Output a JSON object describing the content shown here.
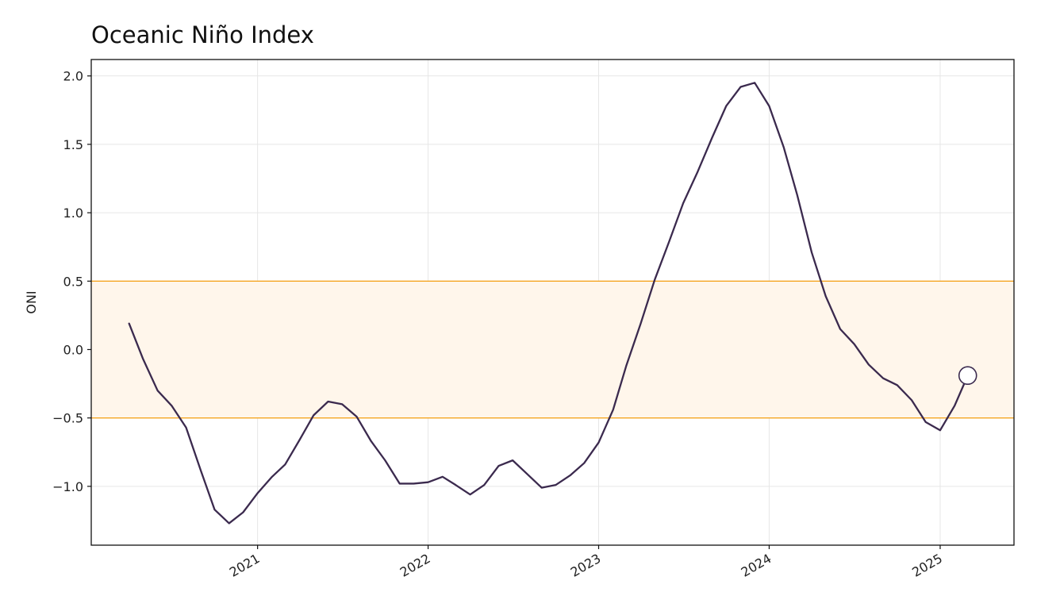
{
  "chart_data": {
    "type": "line",
    "title": "Oceanic Niño Index",
    "xlabel": "",
    "ylabel": "ONI",
    "x_ticks": [
      "2021",
      "2022",
      "2023",
      "2024",
      "2025"
    ],
    "y_ticks": [
      "2.0",
      "1.5",
      "1.0",
      "0.5",
      "0.0",
      "−0.5",
      "−1.0"
    ],
    "y_tick_values": [
      2.0,
      1.5,
      1.0,
      0.5,
      0.0,
      -0.5,
      -1.0
    ],
    "ylim": [
      -1.43,
      2.12
    ],
    "xlim": [
      "2020-01-11",
      "2025-06-08"
    ],
    "grid": true,
    "neutral_band": {
      "low": -0.5,
      "high": 0.5,
      "color": "#f5a623",
      "fill": "#fff6eb"
    },
    "series": [
      {
        "color": "#3b2a4e",
        "x": [
          "2020-04-01",
          "2020-05-01",
          "2020-06-01",
          "2020-07-01",
          "2020-08-01",
          "2020-09-01",
          "2020-10-01",
          "2020-11-01",
          "2020-12-01",
          "2021-01-01",
          "2021-02-01",
          "2021-03-01",
          "2021-04-01",
          "2021-05-01",
          "2021-06-01",
          "2021-07-01",
          "2021-08-01",
          "2021-09-01",
          "2021-10-01",
          "2021-11-01",
          "2021-12-01",
          "2022-01-01",
          "2022-02-01",
          "2022-03-01",
          "2022-04-01",
          "2022-05-01",
          "2022-06-01",
          "2022-07-01",
          "2022-08-01",
          "2022-09-01",
          "2022-10-01",
          "2022-11-01",
          "2022-12-01",
          "2023-01-01",
          "2023-02-01",
          "2023-03-01",
          "2023-04-01",
          "2023-05-01",
          "2023-06-01",
          "2023-07-01",
          "2023-08-01",
          "2023-09-01",
          "2023-10-01",
          "2023-11-01",
          "2023-12-01",
          "2024-01-01",
          "2024-02-01",
          "2024-03-01",
          "2024-04-01",
          "2024-05-01",
          "2024-06-01",
          "2024-07-01",
          "2024-08-01",
          "2024-09-01",
          "2024-10-01",
          "2024-11-01",
          "2024-12-01",
          "2025-01-01",
          "2025-02-01",
          "2025-03-01"
        ],
        "values": [
          0.19,
          -0.07,
          -0.3,
          -0.41,
          -0.57,
          -0.88,
          -1.17,
          -1.27,
          -1.19,
          -1.05,
          -0.93,
          -0.84,
          -0.66,
          -0.48,
          -0.38,
          -0.4,
          -0.49,
          -0.67,
          -0.81,
          -0.98,
          -0.98,
          -0.97,
          -0.93,
          -0.99,
          -1.06,
          -0.99,
          -0.85,
          -0.81,
          -0.91,
          -1.01,
          -0.99,
          -0.92,
          -0.83,
          -0.68,
          -0.44,
          -0.12,
          0.19,
          0.51,
          0.79,
          1.07,
          1.3,
          1.55,
          1.78,
          1.92,
          1.95,
          1.78,
          1.48,
          1.13,
          0.71,
          0.39,
          0.15,
          0.04,
          -0.11,
          -0.21,
          -0.26,
          -0.37,
          -0.53,
          -0.59,
          -0.41,
          -0.19
        ]
      }
    ],
    "last_point_marker": true
  }
}
